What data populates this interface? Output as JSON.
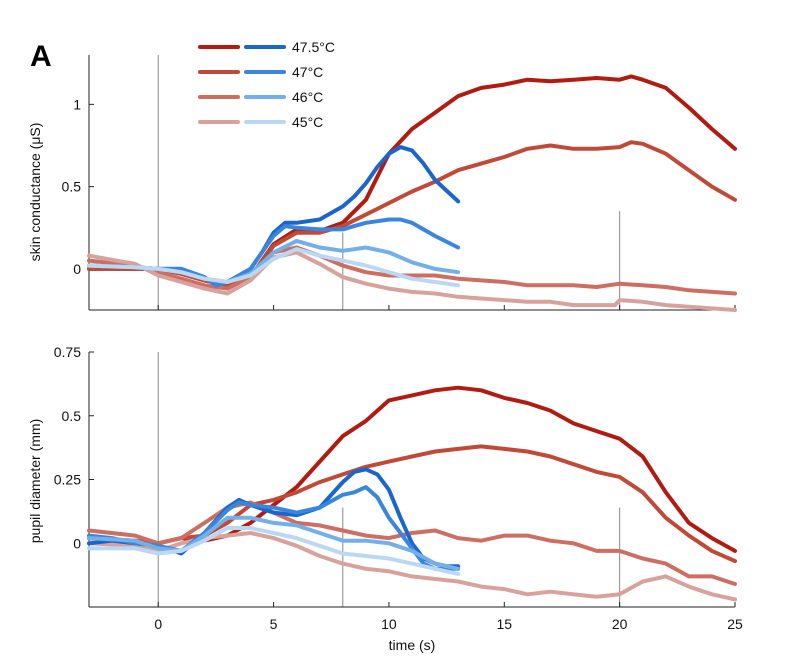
{
  "panel_label": "A",
  "legend": {
    "labels": [
      "47.5°C",
      "47°C",
      "46°C",
      "45°C"
    ],
    "red_colors": [
      "#b01c12",
      "#c04a38",
      "#cc6e62",
      "#d8a29c"
    ],
    "blue_colors": [
      "#1a66cc",
      "#3a86dc",
      "#73b0ea",
      "#bad8f4"
    ]
  },
  "chart_data": [
    {
      "type": "line",
      "ylabel": "skin conductance (μS)",
      "xlabel": "",
      "xlim": [
        -3,
        25
      ],
      "ylim": [
        -0.25,
        1.3
      ],
      "xticks": [
        0,
        5,
        10,
        15,
        20,
        25
      ],
      "ytick_values": [
        0,
        0.5,
        1
      ],
      "ytick_labels": [
        "0",
        "0.5",
        "1"
      ],
      "show_x_tick_labels": false,
      "vertical_markers": [
        {
          "x": 0,
          "y_from": -0.25,
          "y_to": 1.3
        },
        {
          "x": 8,
          "y_from": -0.25,
          "y_to": 0.22
        },
        {
          "x": 20,
          "y_from": -0.25,
          "y_to": 0.35
        }
      ],
      "series": [
        {
          "label": "47.5°C",
          "color": "#b01c12",
          "x": [
            -3,
            -1,
            0,
            1,
            2,
            3,
            4,
            5,
            6,
            7,
            8,
            9,
            10,
            11,
            12,
            13,
            14,
            15,
            16,
            17,
            18,
            19,
            20,
            20.5,
            21,
            22,
            23,
            24,
            25
          ],
          "y": [
            0,
            0,
            0,
            -0.03,
            -0.07,
            -0.1,
            -0.05,
            0.15,
            0.24,
            0.23,
            0.28,
            0.42,
            0.7,
            0.85,
            0.95,
            1.05,
            1.1,
            1.12,
            1.15,
            1.14,
            1.15,
            1.16,
            1.15,
            1.17,
            1.15,
            1.1,
            0.98,
            0.85,
            0.73
          ]
        },
        {
          "label": "47°C",
          "color": "#c04a38",
          "x": [
            -3,
            -1,
            0,
            1,
            2,
            3,
            4,
            5,
            6,
            7,
            8,
            9,
            10,
            11,
            12,
            13,
            14,
            15,
            16,
            17,
            18,
            19,
            20,
            20.5,
            21,
            22,
            23,
            24,
            25
          ],
          "y": [
            0,
            0,
            0,
            -0.03,
            -0.07,
            -0.1,
            -0.05,
            0.14,
            0.22,
            0.22,
            0.26,
            0.33,
            0.4,
            0.47,
            0.53,
            0.6,
            0.64,
            0.68,
            0.73,
            0.75,
            0.73,
            0.73,
            0.74,
            0.77,
            0.76,
            0.7,
            0.6,
            0.5,
            0.42
          ]
        },
        {
          "label": "46°C",
          "color": "#cc6e62",
          "x": [
            -3,
            -1,
            0,
            1,
            2,
            3,
            4,
            5,
            6,
            7,
            8,
            9,
            10,
            11,
            12,
            13,
            14,
            15,
            16,
            17,
            18,
            19,
            20,
            21,
            22,
            23,
            24,
            25
          ],
          "y": [
            0.05,
            0.02,
            -0.02,
            -0.06,
            -0.1,
            -0.12,
            -0.05,
            0.1,
            0.13,
            0.08,
            0.02,
            -0.02,
            -0.04,
            -0.04,
            -0.04,
            -0.06,
            -0.07,
            -0.08,
            -0.1,
            -0.1,
            -0.1,
            -0.11,
            -0.09,
            -0.1,
            -0.11,
            -0.13,
            -0.14,
            -0.15
          ]
        },
        {
          "label": "45°C",
          "color": "#d8a29c",
          "x": [
            -3,
            -1,
            0,
            1,
            2,
            3,
            4,
            5,
            6,
            7,
            8,
            9,
            10,
            11,
            12,
            13,
            14,
            15,
            16,
            17,
            18,
            19,
            19.8,
            20,
            21,
            22,
            23,
            24,
            25
          ],
          "y": [
            0.08,
            0.03,
            -0.04,
            -0.08,
            -0.12,
            -0.15,
            -0.07,
            0.07,
            0.1,
            0.03,
            -0.05,
            -0.09,
            -0.12,
            -0.14,
            -0.15,
            -0.17,
            -0.18,
            -0.19,
            -0.2,
            -0.2,
            -0.22,
            -0.22,
            -0.22,
            -0.19,
            -0.2,
            -0.22,
            -0.23,
            -0.24,
            -0.25
          ]
        },
        {
          "label": "47.5°C",
          "color": "#1a66cc",
          "x": [
            -3,
            -1,
            0,
            1,
            2,
            2.5,
            3,
            4,
            4.5,
            5,
            5.5,
            6,
            7,
            8,
            8.5,
            9,
            9.5,
            10,
            10.5,
            11,
            11.5,
            12,
            13
          ],
          "y": [
            0.02,
            0.01,
            0,
            0,
            -0.05,
            -0.1,
            -0.08,
            0,
            0.1,
            0.22,
            0.28,
            0.28,
            0.3,
            0.38,
            0.44,
            0.52,
            0.62,
            0.7,
            0.74,
            0.72,
            0.64,
            0.54,
            0.41
          ]
        },
        {
          "label": "47°C",
          "color": "#3a86dc",
          "x": [
            -3,
            -1,
            0,
            1,
            2,
            2.5,
            3,
            4,
            4.5,
            5,
            5.5,
            6,
            7,
            8,
            8.5,
            9,
            9.5,
            10,
            10.5,
            11,
            11.5,
            12,
            13
          ],
          "y": [
            0.02,
            0.01,
            0,
            0,
            -0.05,
            -0.1,
            -0.08,
            0,
            0.1,
            0.2,
            0.26,
            0.25,
            0.24,
            0.24,
            0.26,
            0.28,
            0.29,
            0.3,
            0.3,
            0.28,
            0.24,
            0.2,
            0.13
          ]
        },
        {
          "label": "46°C",
          "color": "#73b0ea",
          "x": [
            -3,
            -1,
            0,
            1,
            2,
            3,
            4,
            5,
            6,
            7,
            8,
            9,
            10,
            11,
            12,
            13
          ],
          "y": [
            0.02,
            0.01,
            0,
            -0.02,
            -0.06,
            -0.08,
            -0.03,
            0.1,
            0.17,
            0.13,
            0.11,
            0.13,
            0.1,
            0.04,
            0.0,
            -0.02
          ]
        },
        {
          "label": "45°C",
          "color": "#bad8f4",
          "x": [
            -3,
            -1,
            0,
            1,
            2,
            3,
            4,
            5,
            6,
            7,
            8,
            9,
            10,
            11,
            12,
            13
          ],
          "y": [
            0.02,
            0.01,
            0,
            -0.02,
            -0.06,
            -0.08,
            -0.04,
            0.06,
            0.12,
            0.08,
            0.05,
            0.02,
            -0.02,
            -0.06,
            -0.08,
            -0.1
          ]
        }
      ]
    },
    {
      "type": "line",
      "ylabel": "pupil diameter (mm)",
      "xlabel": "time (s)",
      "xlim": [
        -3,
        25
      ],
      "ylim": [
        -0.25,
        0.75
      ],
      "xticks": [
        0,
        5,
        10,
        15,
        20,
        25
      ],
      "ytick_values": [
        0,
        0.25,
        0.5,
        0.75
      ],
      "ytick_labels": [
        "0",
        "0.25",
        "0.5",
        "0.75"
      ],
      "show_x_tick_labels": true,
      "vertical_markers": [
        {
          "x": 0,
          "y_from": -0.25,
          "y_to": 0.75
        },
        {
          "x": 8,
          "y_from": -0.25,
          "y_to": 0.14
        },
        {
          "x": 20,
          "y_from": -0.25,
          "y_to": 0.14
        }
      ],
      "series": [
        {
          "label": "47.5°C",
          "color": "#b01c12",
          "x": [
            -3,
            -1,
            0,
            1,
            2,
            3,
            4,
            5,
            6,
            7,
            8,
            9,
            10,
            11,
            12,
            13,
            14,
            15,
            16,
            17,
            18,
            19,
            20,
            21,
            22,
            23,
            24,
            25
          ],
          "y": [
            0.02,
            0.01,
            0,
            0.02,
            0.01,
            0.03,
            0.08,
            0.15,
            0.22,
            0.32,
            0.42,
            0.48,
            0.56,
            0.58,
            0.6,
            0.61,
            0.6,
            0.57,
            0.55,
            0.52,
            0.47,
            0.44,
            0.41,
            0.34,
            0.2,
            0.08,
            0.02,
            -0.03
          ]
        },
        {
          "label": "47°C",
          "color": "#c04a38",
          "x": [
            -3,
            -1,
            0,
            1,
            2,
            3,
            4,
            5,
            6,
            7,
            8,
            9,
            10,
            11,
            12,
            13,
            14,
            15,
            16,
            17,
            18,
            19,
            20,
            21,
            22,
            23,
            24,
            25
          ],
          "y": [
            0.02,
            0.01,
            0,
            0.02,
            0.03,
            0.08,
            0.15,
            0.17,
            0.2,
            0.24,
            0.27,
            0.3,
            0.32,
            0.34,
            0.36,
            0.37,
            0.38,
            0.37,
            0.36,
            0.34,
            0.31,
            0.28,
            0.26,
            0.2,
            0.1,
            0.03,
            -0.03,
            -0.07
          ]
        },
        {
          "label": "46°C",
          "color": "#cc6e62",
          "x": [
            -3,
            -1,
            0,
            1,
            2,
            3,
            4,
            5,
            6,
            7,
            8,
            9,
            10,
            11,
            12,
            13,
            14,
            15,
            16,
            17,
            18,
            19,
            20,
            21,
            22,
            23,
            24,
            25
          ],
          "y": [
            0.05,
            0.03,
            0,
            0.02,
            0.08,
            0.14,
            0.16,
            0.12,
            0.08,
            0.07,
            0.05,
            0.03,
            0.02,
            0.04,
            0.05,
            0.02,
            0.01,
            0.03,
            0.03,
            0.01,
            0.0,
            -0.03,
            -0.03,
            -0.06,
            -0.08,
            -0.13,
            -0.13,
            -0.16
          ]
        },
        {
          "label": "45°C",
          "color": "#d8a29c",
          "x": [
            -3,
            -1,
            0,
            1,
            2,
            3,
            4,
            5,
            6,
            7,
            8,
            9,
            10,
            11,
            12,
            13,
            14,
            15,
            16,
            17,
            18,
            19,
            20,
            21,
            22,
            23,
            24,
            25
          ],
          "y": [
            0.0,
            -0.01,
            -0.03,
            0.0,
            0.02,
            0.03,
            0.04,
            0.02,
            -0.01,
            -0.05,
            -0.08,
            -0.1,
            -0.11,
            -0.13,
            -0.14,
            -0.15,
            -0.17,
            -0.18,
            -0.2,
            -0.19,
            -0.2,
            -0.21,
            -0.2,
            -0.15,
            -0.13,
            -0.17,
            -0.2,
            -0.22
          ]
        },
        {
          "label": "47.5°C",
          "color": "#1a66cc",
          "x": [
            -3,
            -2,
            -1,
            0,
            1,
            2,
            3,
            3.5,
            4,
            5,
            6,
            7,
            8,
            8.5,
            9,
            9.5,
            10,
            10.5,
            11,
            11.5,
            12,
            12.5,
            13
          ],
          "y": [
            0.0,
            0.01,
            0.0,
            -0.01,
            -0.04,
            0.04,
            0.14,
            0.17,
            0.15,
            0.12,
            0.11,
            0.14,
            0.24,
            0.28,
            0.29,
            0.27,
            0.21,
            0.1,
            0.0,
            -0.06,
            -0.08,
            -0.09,
            -0.09
          ]
        },
        {
          "label": "47°C",
          "color": "#3a86dc",
          "x": [
            -3,
            -2,
            -1,
            0,
            1,
            2,
            3,
            3.5,
            4,
            5,
            6,
            7,
            8,
            8.5,
            9,
            9.5,
            10,
            10.5,
            11,
            11.5,
            12,
            12.5,
            13
          ],
          "y": [
            0.03,
            0.02,
            0.0,
            -0.01,
            -0.03,
            0.04,
            0.13,
            0.16,
            0.15,
            0.14,
            0.12,
            0.14,
            0.19,
            0.2,
            0.22,
            0.18,
            0.1,
            0.04,
            -0.02,
            -0.08,
            -0.1,
            -0.1,
            -0.1
          ]
        },
        {
          "label": "46°C",
          "color": "#73b0ea",
          "x": [
            -3,
            -1,
            0,
            1,
            2,
            3,
            4,
            5,
            6,
            7,
            8,
            9,
            10,
            11,
            12,
            13
          ],
          "y": [
            0.02,
            0.01,
            -0.02,
            -0.03,
            0.03,
            0.1,
            0.1,
            0.08,
            0.07,
            0.04,
            0.01,
            0.01,
            0.0,
            -0.03,
            -0.08,
            -0.1
          ]
        },
        {
          "label": "45°C",
          "color": "#bad8f4",
          "x": [
            -3,
            -1,
            0,
            1,
            2,
            3,
            4,
            5,
            6,
            7,
            8,
            9,
            10,
            11,
            12,
            13
          ],
          "y": [
            -0.02,
            -0.02,
            -0.04,
            -0.03,
            0.01,
            0.06,
            0.06,
            0.04,
            0.02,
            -0.01,
            -0.04,
            -0.05,
            -0.06,
            -0.08,
            -0.1,
            -0.12
          ]
        }
      ]
    }
  ]
}
